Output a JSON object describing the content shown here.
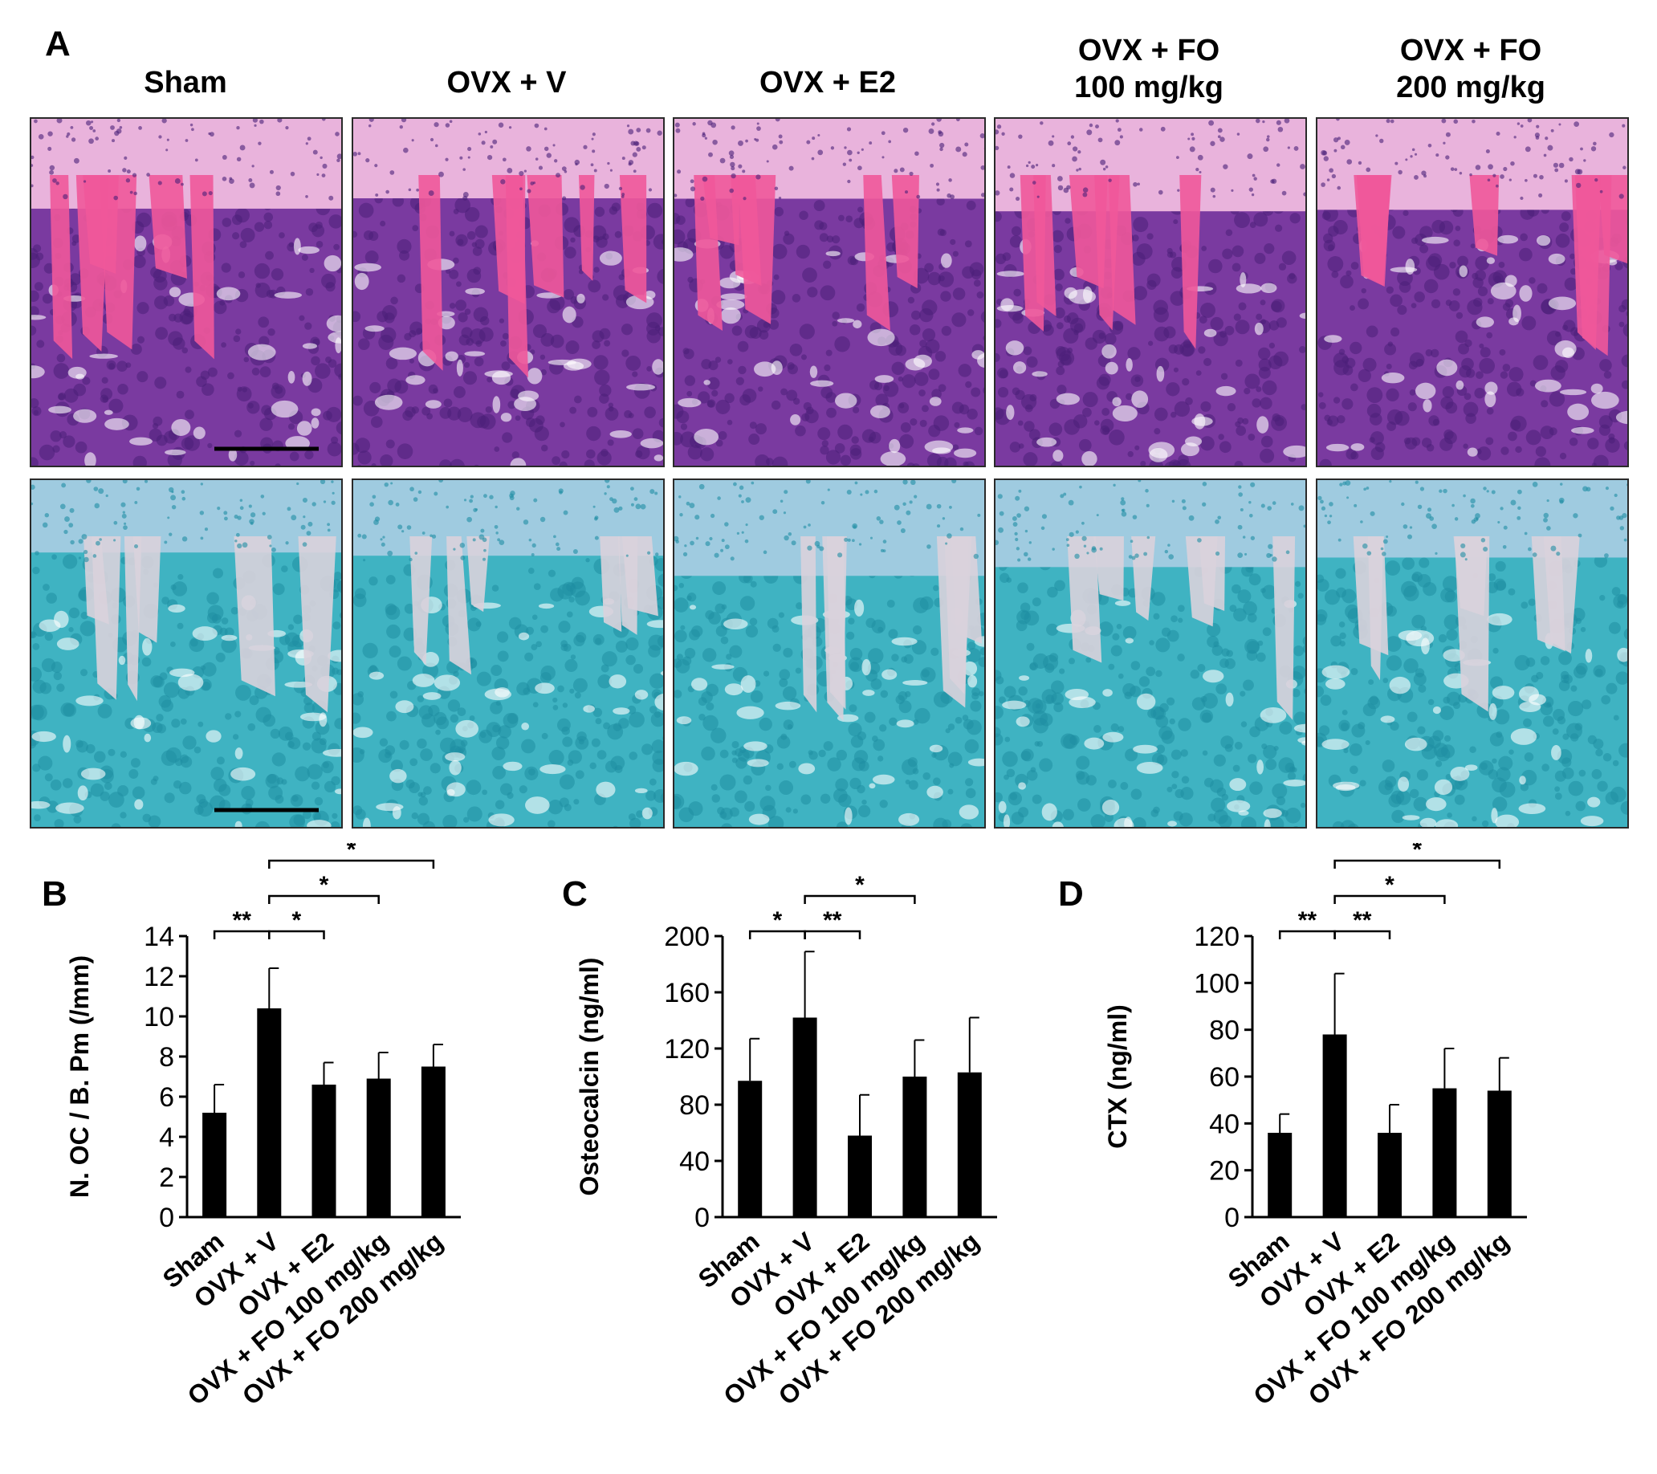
{
  "panel_a": {
    "label": "A",
    "columns": [
      {
        "line1": "Sham",
        "line2": ""
      },
      {
        "line1": "OVX + V",
        "line2": ""
      },
      {
        "line1": "OVX + E2",
        "line2": ""
      },
      {
        "line1": "OVX + FO",
        "line2": "100 mg/kg"
      },
      {
        "line1": "OVX + FO",
        "line2": "200 mg/kg"
      }
    ],
    "rows": [
      {
        "stain": "H&E",
        "bg": "#7a3aa0",
        "band": "#e9b3dc",
        "trab": "#f0589a",
        "cell": "#4a1f78",
        "scale_bar": true
      },
      {
        "stain": "TRAP",
        "bg": "#3fb3c2",
        "band": "#9fcbe0",
        "trab": "#d9d2dc",
        "cell": "#1f8ea3",
        "scale_bar": true
      }
    ]
  },
  "chart_data": [
    {
      "panel": "B",
      "type": "bar",
      "categories": [
        "Sham",
        "OVX + V",
        "OVX + E2",
        "OVX + FO 100 mg/kg",
        "OVX + FO 200 mg/kg"
      ],
      "values": [
        5.2,
        10.4,
        6.6,
        6.9,
        7.5
      ],
      "errors": [
        1.4,
        2.0,
        1.1,
        1.3,
        1.1
      ],
      "ylabel": "N. OC / B. Pm (/mm)",
      "ylim": [
        0,
        14
      ],
      "yticks": [
        0,
        2,
        4,
        6,
        8,
        10,
        12,
        14
      ],
      "significance": [
        {
          "from": 0,
          "to": 1,
          "label": "**",
          "level": 0
        },
        {
          "from": 1,
          "to": 2,
          "label": "*",
          "level": 0
        },
        {
          "from": 1,
          "to": 3,
          "label": "*",
          "level": 1
        },
        {
          "from": 1,
          "to": 4,
          "label": "*",
          "level": 2
        }
      ]
    },
    {
      "panel": "C",
      "type": "bar",
      "categories": [
        "Sham",
        "OVX + V",
        "OVX + E2",
        "OVX + FO 100 mg/kg",
        "OVX + FO 200 mg/kg"
      ],
      "values": [
        97,
        142,
        58,
        100,
        103
      ],
      "errors": [
        30,
        47,
        29,
        26,
        39
      ],
      "ylabel": "Osteocalcin (ng/ml)",
      "ylim": [
        0,
        200
      ],
      "yticks": [
        0,
        40,
        80,
        120,
        160,
        200
      ],
      "significance": [
        {
          "from": 0,
          "to": 1,
          "label": "*",
          "level": 0
        },
        {
          "from": 1,
          "to": 2,
          "label": "**",
          "level": 0
        },
        {
          "from": 1,
          "to": 3,
          "label": "*",
          "level": 1
        }
      ]
    },
    {
      "panel": "D",
      "type": "bar",
      "categories": [
        "Sham",
        "OVX + V",
        "OVX + E2",
        "OVX + FO 100 mg/kg",
        "OVX + FO 200 mg/kg"
      ],
      "values": [
        36,
        78,
        36,
        55,
        54
      ],
      "errors": [
        8,
        26,
        12,
        17,
        14
      ],
      "ylabel": "CTX (ng/ml)",
      "ylim": [
        0,
        120
      ],
      "yticks": [
        0,
        20,
        40,
        60,
        80,
        100,
        120
      ],
      "significance": [
        {
          "from": 0,
          "to": 1,
          "label": "**",
          "level": 0
        },
        {
          "from": 1,
          "to": 2,
          "label": "**",
          "level": 0
        },
        {
          "from": 1,
          "to": 3,
          "label": "*",
          "level": 1
        },
        {
          "from": 1,
          "to": 4,
          "label": "*",
          "level": 2
        }
      ]
    }
  ]
}
